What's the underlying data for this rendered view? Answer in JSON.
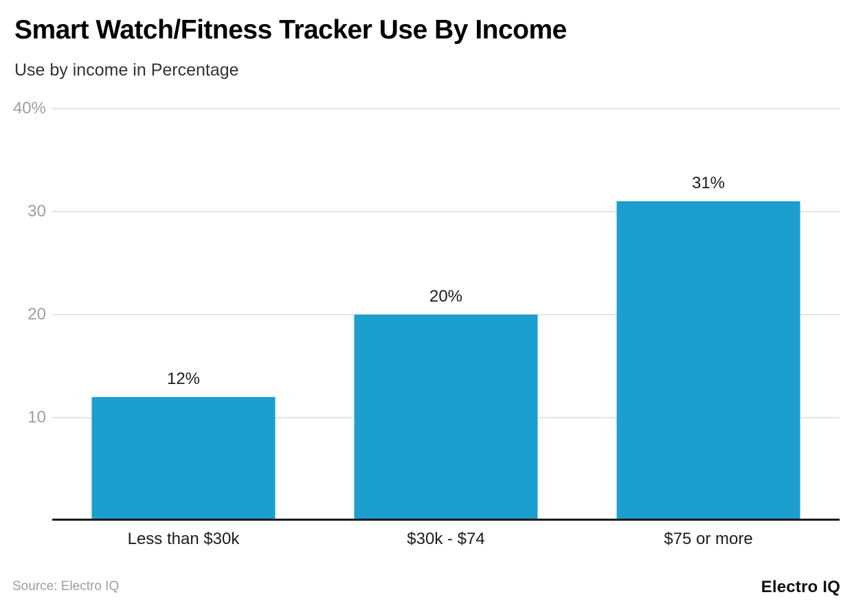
{
  "header": {
    "title": "Smart Watch/Fitness Tracker Use By Income",
    "subtitle": "Use by income in Percentage"
  },
  "chart_data": {
    "type": "bar",
    "title": "Smart Watch/Fitness Tracker Use By Income",
    "subtitle": "Use by income in Percentage",
    "categories": [
      "Less than $30k",
      "$30k - $74",
      "$75 or more"
    ],
    "values": [
      12,
      20,
      31
    ],
    "value_labels": [
      "12%",
      "20%",
      "31%"
    ],
    "xlabel": "",
    "ylabel": "",
    "ylim": [
      0,
      40
    ],
    "yticks": [
      {
        "value": 40,
        "label": "40%"
      },
      {
        "value": 30,
        "label": "30"
      },
      {
        "value": 20,
        "label": "20"
      },
      {
        "value": 10,
        "label": "10"
      }
    ],
    "grid": true,
    "legend": "none",
    "colors": {
      "bar": "#1A9FCE",
      "gridline": "#E4E4E4",
      "axis_line": "#1A1A1A",
      "tick_text": "#9E9E9E",
      "label_text": "#1C1C1C"
    }
  },
  "footer": {
    "source": "Source: Electro IQ",
    "brand": "Electro IQ"
  }
}
